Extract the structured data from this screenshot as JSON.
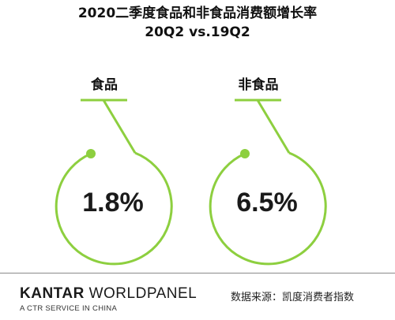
{
  "chart_data": {
    "type": "table",
    "title": "2020二季度食品和非食品消费额增长率",
    "subtitle": "20Q2 vs.19Q2",
    "categories": [
      "食品",
      "非食品"
    ],
    "values": [
      "1.8%",
      "6.5%"
    ],
    "accent_color": "#8dcf3f"
  },
  "footer": {
    "brand_main": "KANTAR WORLDPANEL",
    "brand_sub": "A CTR SERVICE IN CHINA",
    "source": "数据来源：凯度消费者指数"
  }
}
